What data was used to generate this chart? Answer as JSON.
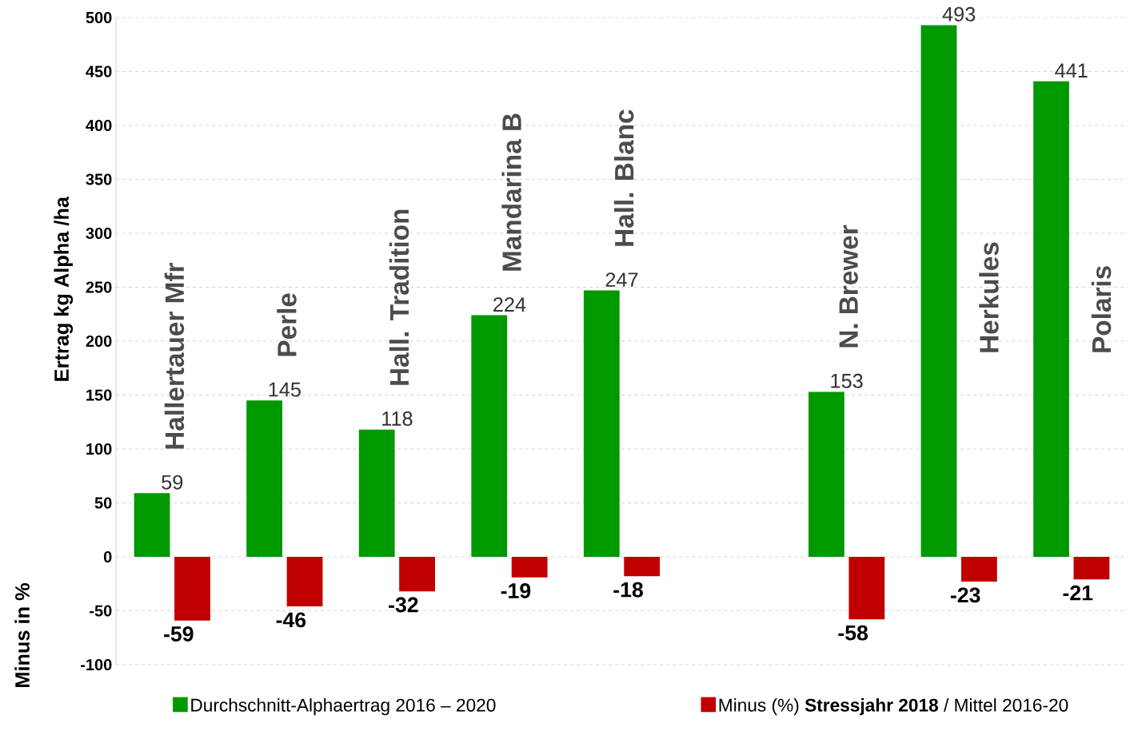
{
  "chart_data": {
    "type": "bar",
    "ylabel": "Ertrag kg Alpha /ha",
    "annotations": [
      "Minus in %"
    ],
    "categories": [
      "Hallertauer Mfr",
      "Perle",
      "Hall. Tradition",
      "Mandarina B",
      "Hall. Blanc",
      null,
      "N. Brewer",
      "Herkules",
      "Polaris"
    ],
    "series": [
      {
        "name": "Durchschnitt-Alphaertrag 2016 – 2020",
        "color": "#009900",
        "values": [
          59,
          145,
          118,
          224,
          247,
          null,
          153,
          493,
          441
        ]
      },
      {
        "name": "Minus (%) **Stressjahr 2018** / Mittel 2016-20",
        "color": "#c00000",
        "values": [
          -59,
          -46,
          -32,
          -19,
          -18,
          null,
          -58,
          -23,
          -21
        ]
      }
    ],
    "ylim": [
      -100,
      500
    ],
    "yticks": [
      -100,
      -50,
      0,
      50,
      100,
      150,
      200,
      250,
      300,
      350,
      400,
      450,
      500
    ],
    "grid": "y",
    "legend": "bottom",
    "data_labels": true
  }
}
